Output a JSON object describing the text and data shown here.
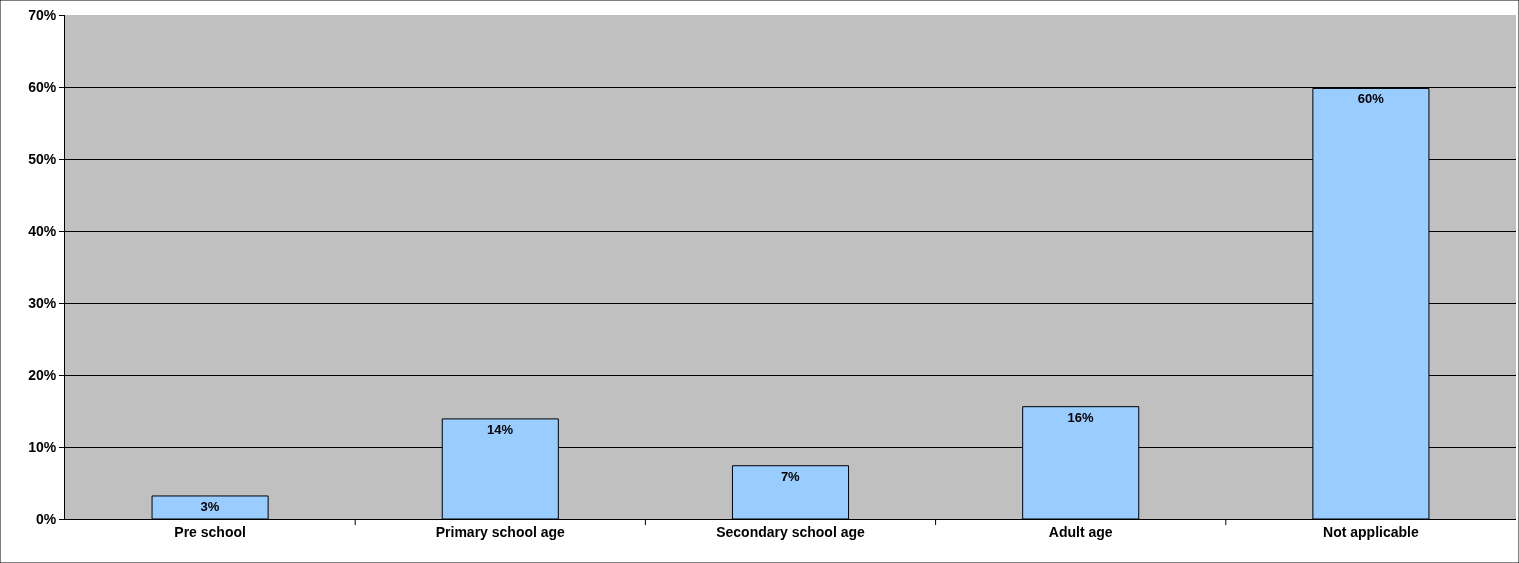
{
  "chart_data": {
    "type": "bar",
    "categories": [
      "Pre school",
      "Primary school age",
      "Secondary school age",
      "Adult age",
      "Not applicable"
    ],
    "values": [
      3.2,
      13.9,
      7.4,
      15.6,
      59.8
    ],
    "value_labels": [
      "3%",
      "14%",
      "7%",
      "16%",
      "60%"
    ],
    "color": "#99ccff",
    "ylim": [
      0,
      70
    ],
    "yticks": [
      {
        "value": 0,
        "label": "0%"
      },
      {
        "value": 10,
        "label": "10%"
      },
      {
        "value": 20,
        "label": "20%"
      },
      {
        "value": 30,
        "label": "30%"
      },
      {
        "value": 40,
        "label": "40%"
      },
      {
        "value": 50,
        "label": "50%"
      },
      {
        "value": 60,
        "label": "60%"
      },
      {
        "value": 70,
        "label": "70%"
      }
    ],
    "grid": "y"
  }
}
